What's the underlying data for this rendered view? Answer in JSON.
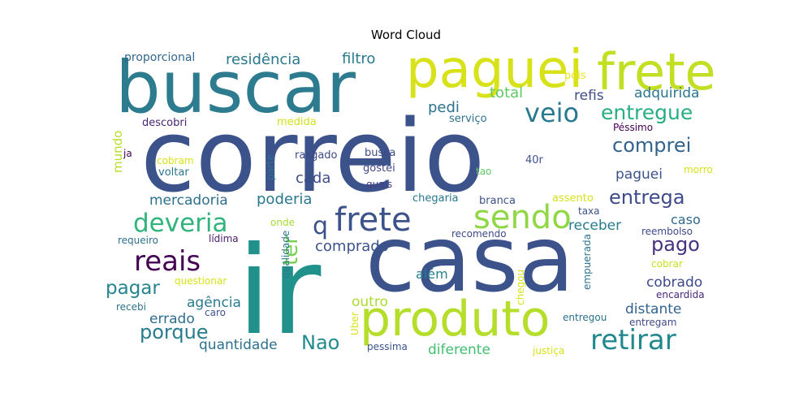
{
  "chart_data": {
    "type": "wordcloud",
    "title": "Word Cloud",
    "words": [
      {
        "text": "correio",
        "color": "#3b528b",
        "rank": 1
      },
      {
        "text": "casa",
        "color": "#3b528b",
        "rank": 2
      },
      {
        "text": "ir",
        "color": "#21918c",
        "rank": 3
      },
      {
        "text": "buscar",
        "color": "#2c7b8e",
        "rank": 4
      },
      {
        "text": "produto",
        "color": "#b5de2b",
        "rank": 5
      },
      {
        "text": "paguei",
        "color": "#d8e219",
        "rank": 6
      },
      {
        "text": "frete",
        "color": "#c2df23",
        "rank": 7
      },
      {
        "text": "frete",
        "color": "#3b528b",
        "rank": 8
      },
      {
        "text": "sendo",
        "color": "#8fd744",
        "rank": 9
      },
      {
        "text": "retirar",
        "color": "#23888e",
        "rank": 10
      },
      {
        "text": "deveria",
        "color": "#2fb47c",
        "rank": 11
      },
      {
        "text": "veio",
        "color": "#297a8e",
        "rank": 12
      },
      {
        "text": "reais",
        "color": "#440154",
        "rank": 13
      },
      {
        "text": "entregue",
        "color": "#28ae80",
        "rank": 14
      },
      {
        "text": "Nao",
        "color": "#238a8d",
        "rank": 15
      },
      {
        "text": "comprei",
        "color": "#33638d",
        "rank": 16
      },
      {
        "text": "entrega",
        "color": "#3e4a89",
        "rank": 17
      },
      {
        "text": "pago",
        "color": "#46327e",
        "rank": 18
      },
      {
        "text": "porque",
        "color": "#287c8e",
        "rank": 19
      },
      {
        "text": "pagar",
        "color": "#25848e",
        "rank": 20
      },
      {
        "text": "q",
        "color": "#3b528b",
        "rank": 21
      },
      {
        "text": "ter",
        "color": "#75d054",
        "rank": 22
      },
      {
        "text": "residência",
        "color": "#2a788e",
        "rank": 23
      },
      {
        "text": "filtro",
        "color": "#297b8e",
        "rank": 24
      },
      {
        "text": "total",
        "color": "#5ec962",
        "rank": 25
      },
      {
        "text": "adquirida",
        "color": "#2a768e",
        "rank": 26
      },
      {
        "text": "refis",
        "color": "#3e4c8a",
        "rank": 27
      },
      {
        "text": "pedi",
        "color": "#2c738e",
        "rank": 28
      },
      {
        "text": "paguei",
        "color": "#3b528b",
        "rank": 29
      },
      {
        "text": "cada",
        "color": "#3d4d8a",
        "rank": 30
      },
      {
        "text": "mercadoria",
        "color": "#2c718e",
        "rank": 31
      },
      {
        "text": "poderia",
        "color": "#2a788e",
        "rank": 32
      },
      {
        "text": "caso",
        "color": "#31688e",
        "rank": 33
      },
      {
        "text": "receber",
        "color": "#287d8e",
        "rank": 34
      },
      {
        "text": "comprado",
        "color": "#3b528b",
        "rank": 35
      },
      {
        "text": "cobrado",
        "color": "#3e4989",
        "rank": 36
      },
      {
        "text": "distante",
        "color": "#33638d",
        "rank": 37
      },
      {
        "text": "agência",
        "color": "#297b8e",
        "rank": 38
      },
      {
        "text": "errado",
        "color": "#2e6e8e",
        "rank": 39
      },
      {
        "text": "quantidade",
        "color": "#2c718e",
        "rank": 40
      },
      {
        "text": "diferente",
        "color": "#42be71",
        "rank": 41
      },
      {
        "text": "além",
        "color": "#26828e",
        "rank": 42
      },
      {
        "text": "outro",
        "color": "#addc30",
        "rank": 43
      },
      {
        "text": "proporcional",
        "color": "#31688e",
        "rank": 44
      },
      {
        "text": "pois",
        "color": "#e5e419",
        "rank": 45
      },
      {
        "text": "serviço",
        "color": "#2e6f8e",
        "rank": 46
      },
      {
        "text": "descobri",
        "color": "#482576",
        "rank": 47
      },
      {
        "text": "medida",
        "color": "#d0e11c",
        "rank": 48
      },
      {
        "text": "Péssimo",
        "color": "#440154",
        "rank": 49
      },
      {
        "text": "mundo",
        "color": "#b5de2b",
        "rank": 50
      },
      {
        "text": "ja",
        "color": "#440154",
        "rank": 51
      },
      {
        "text": "cobram",
        "color": "#d8e219",
        "rank": 52
      },
      {
        "text": "voltar",
        "color": "#2a768e",
        "rank": 53
      },
      {
        "text": "parte",
        "color": "#2c718e",
        "rank": 54
      },
      {
        "text": "rasgado",
        "color": "#3e4989",
        "rank": 55
      },
      {
        "text": "busca",
        "color": "#3e4a89",
        "rank": 56
      },
      {
        "text": "gostei",
        "color": "#3f4788",
        "rank": 57
      },
      {
        "text": "quais",
        "color": "#433e85",
        "rank": 58
      },
      {
        "text": "tao",
        "color": "#5ec962",
        "rank": 59
      },
      {
        "text": "40r",
        "color": "#3b528b",
        "rank": 60
      },
      {
        "text": "morro",
        "color": "#d8e219",
        "rank": 61
      },
      {
        "text": "chegaria",
        "color": "#2a788e",
        "rank": 62
      },
      {
        "text": "branca",
        "color": "#3b528b",
        "rank": 63
      },
      {
        "text": "assento",
        "color": "#d8e219",
        "rank": 64
      },
      {
        "text": "taxa",
        "color": "#3b528b",
        "rank": 65
      },
      {
        "text": "onde",
        "color": "#a5db36",
        "rank": 66
      },
      {
        "text": "recomendo",
        "color": "#3e4a89",
        "rank": 67
      },
      {
        "text": "requeiro",
        "color": "#2c718e",
        "rank": 68
      },
      {
        "text": "lídima",
        "color": "#481a6c",
        "rank": 69
      },
      {
        "text": "qualidade",
        "color": "#2a788e",
        "rank": 70
      },
      {
        "text": "empuerada",
        "color": "#2c718e",
        "rank": 71
      },
      {
        "text": "reembolso",
        "color": "#3e4989",
        "rank": 72
      },
      {
        "text": "cobrar",
        "color": "#c8e020",
        "rank": 73
      },
      {
        "text": "questionar",
        "color": "#d8e219",
        "rank": 74
      },
      {
        "text": "chegou",
        "color": "#d8e219",
        "rank": 75
      },
      {
        "text": "encardida",
        "color": "#482878",
        "rank": 76
      },
      {
        "text": "recebi",
        "color": "#2c718e",
        "rank": 77
      },
      {
        "text": "caro",
        "color": "#3b528b",
        "rank": 78
      },
      {
        "text": "Uber",
        "color": "#d8e219",
        "rank": 79
      },
      {
        "text": "entregou",
        "color": "#2c718e",
        "rank": 80
      },
      {
        "text": "entregam",
        "color": "#3e4989",
        "rank": 81
      },
      {
        "text": "pessima",
        "color": "#3b528b",
        "rank": 82
      },
      {
        "text": "justiça",
        "color": "#d8e219",
        "rank": 83
      }
    ]
  }
}
